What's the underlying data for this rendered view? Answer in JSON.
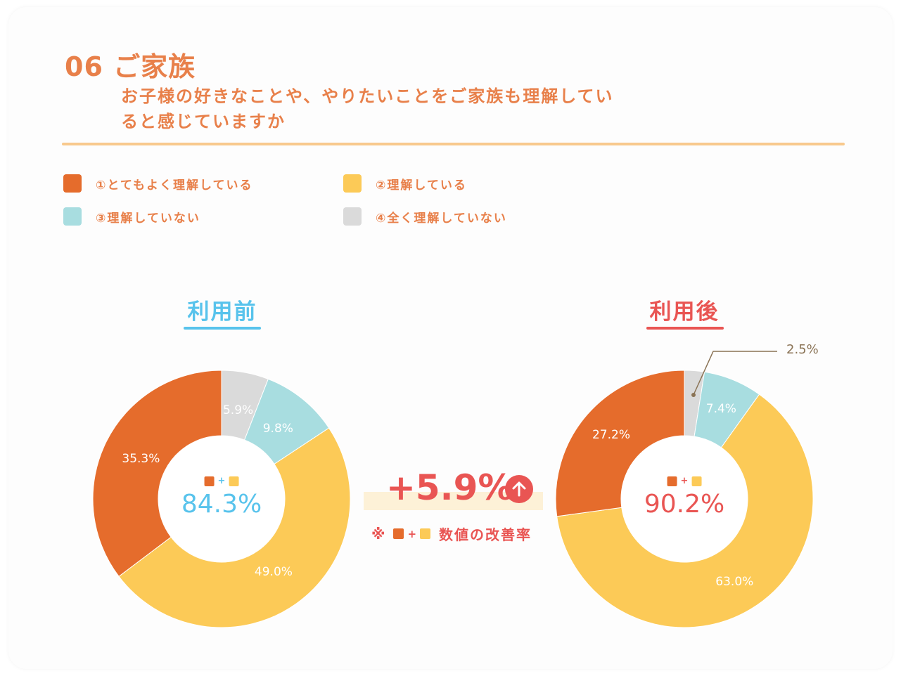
{
  "header": {
    "title": "06 ご家族",
    "subtitle": "お子様の好きなことや、やりたいことをご家族も理解していると感じていますか"
  },
  "colors": {
    "very_understand": "#e56c2c",
    "understand": "#fcca57",
    "not_understand": "#a8dde0",
    "not_at_all": "#dadada",
    "before_accent": "#58c3ec",
    "after_accent": "#e95553",
    "text_orange": "#e8804a"
  },
  "legend": [
    {
      "label": "①とてもよく理解している",
      "color": "#e56c2c"
    },
    {
      "label": "②理解している",
      "color": "#fcca57"
    },
    {
      "label": "③理解していない",
      "color": "#a8dde0"
    },
    {
      "label": "④全く理解していない",
      "color": "#dadada"
    }
  ],
  "comparison": {
    "before_label": "利用前",
    "after_label": "利用後",
    "before_total": "84.3%",
    "after_total": "90.2%",
    "difference": "+5.9%",
    "note": "数値の改善率",
    "note_mark": "※",
    "plus": "+"
  },
  "chart_data": [
    {
      "type": "pie",
      "title": "利用前",
      "categories": [
        "①とてもよく理解している",
        "②理解している",
        "③理解していない",
        "④全く理解していない"
      ],
      "values": [
        35.3,
        49.0,
        9.8,
        5.9
      ],
      "labels": [
        "35.3%",
        "49.0%",
        "9.8%",
        "5.9%"
      ],
      "donut": true
    },
    {
      "type": "pie",
      "title": "利用後",
      "categories": [
        "①とてもよく理解している",
        "②理解している",
        "③理解していない",
        "④全く理解していない"
      ],
      "values": [
        27.2,
        63.0,
        7.4,
        2.5
      ],
      "labels": [
        "27.2%",
        "63.0%",
        "7.4%",
        "2.5%"
      ],
      "donut": true
    }
  ]
}
